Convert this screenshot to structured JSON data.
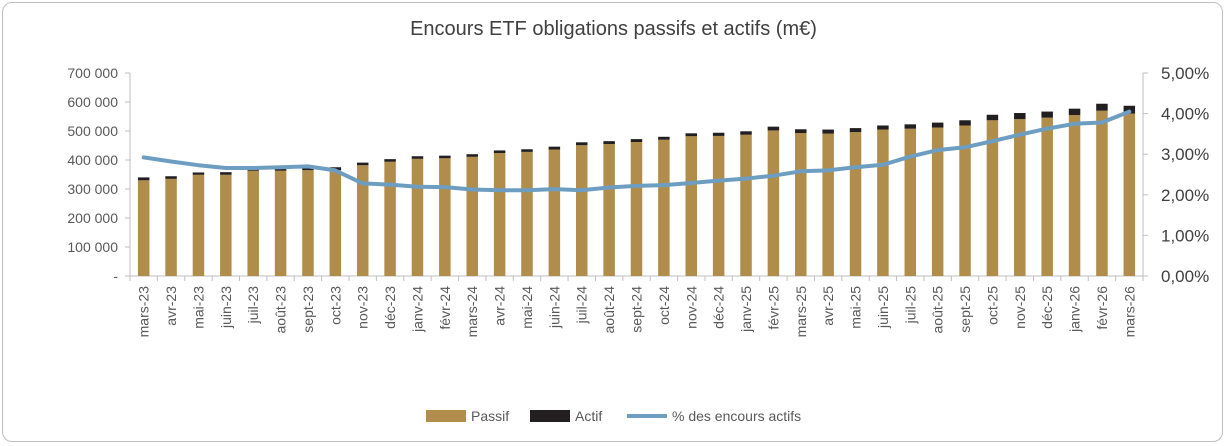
{
  "chart_data": {
    "type": "bar",
    "title": "Encours ETF obligations passifs et actifs (m€)",
    "categories": [
      "mars-23",
      "avr-23",
      "mai-23",
      "juin-23",
      "juil-23",
      "août-23",
      "sept-23",
      "oct-23",
      "nov-23",
      "déc-23",
      "janv-24",
      "févr-24",
      "mars-24",
      "avr-24",
      "mai-24",
      "juin-24",
      "juil-24",
      "août-24",
      "sept-24",
      "oct-24",
      "nov-24",
      "déc-24",
      "janv-25",
      "févr-25",
      "mars-25",
      "avr-25",
      "mai-25",
      "juin-25",
      "juil-25",
      "août-25",
      "sept-25",
      "oct-25",
      "nov-25",
      "déc-25",
      "janv-26",
      "févr-26",
      "mars-26"
    ],
    "series": [
      {
        "name": "Passif",
        "kind": "bar-stacked",
        "color": "#b08d4a",
        "axis": "left",
        "values": [
          330000,
          335000,
          349000,
          349000,
          363000,
          363000,
          365000,
          365000,
          382000,
          394000,
          404000,
          406000,
          411000,
          424000,
          428000,
          436000,
          451000,
          455000,
          462000,
          470000,
          482000,
          483000,
          487000,
          502000,
          493000,
          491000,
          496000,
          505000,
          508000,
          512000,
          519000,
          537000,
          541000,
          546000,
          555000,
          570000,
          560000
        ]
      },
      {
        "name": "Actif",
        "kind": "bar-stacked",
        "color": "#231f20",
        "axis": "left",
        "values": [
          10000,
          9000,
          8000,
          9000,
          9000,
          9000,
          10000,
          10000,
          9000,
          9000,
          9000,
          9000,
          9000,
          9000,
          9000,
          10000,
          10000,
          10000,
          10000,
          10000,
          10000,
          11000,
          12000,
          13000,
          13000,
          14000,
          14000,
          14000,
          15000,
          17000,
          18000,
          19000,
          21000,
          21000,
          22000,
          24000,
          27000
        ]
      },
      {
        "name": "% des encours actifs",
        "kind": "line",
        "color": "#6e9dc2",
        "axis": "right",
        "values": [
          2.92,
          2.82,
          2.73,
          2.66,
          2.66,
          2.68,
          2.7,
          2.6,
          2.28,
          2.25,
          2.2,
          2.19,
          2.13,
          2.11,
          2.11,
          2.14,
          2.11,
          2.18,
          2.22,
          2.24,
          2.29,
          2.35,
          2.4,
          2.47,
          2.58,
          2.6,
          2.68,
          2.74,
          2.94,
          3.1,
          3.17,
          3.32,
          3.48,
          3.63,
          3.75,
          3.78,
          4.05
        ]
      }
    ],
    "y_left": {
      "min": 0,
      "max": 700000,
      "ticks": [
        "-",
        "100 000",
        "200 000",
        "300 000",
        "400 000",
        "500 000",
        "600 000",
        "700 000"
      ]
    },
    "y_right": {
      "min": 0,
      "max": 5,
      "ticks": [
        "0,00%",
        "1,00%",
        "2,00%",
        "3,00%",
        "4,00%",
        "5,00%"
      ]
    },
    "grid": false,
    "legend_position": "bottom"
  }
}
